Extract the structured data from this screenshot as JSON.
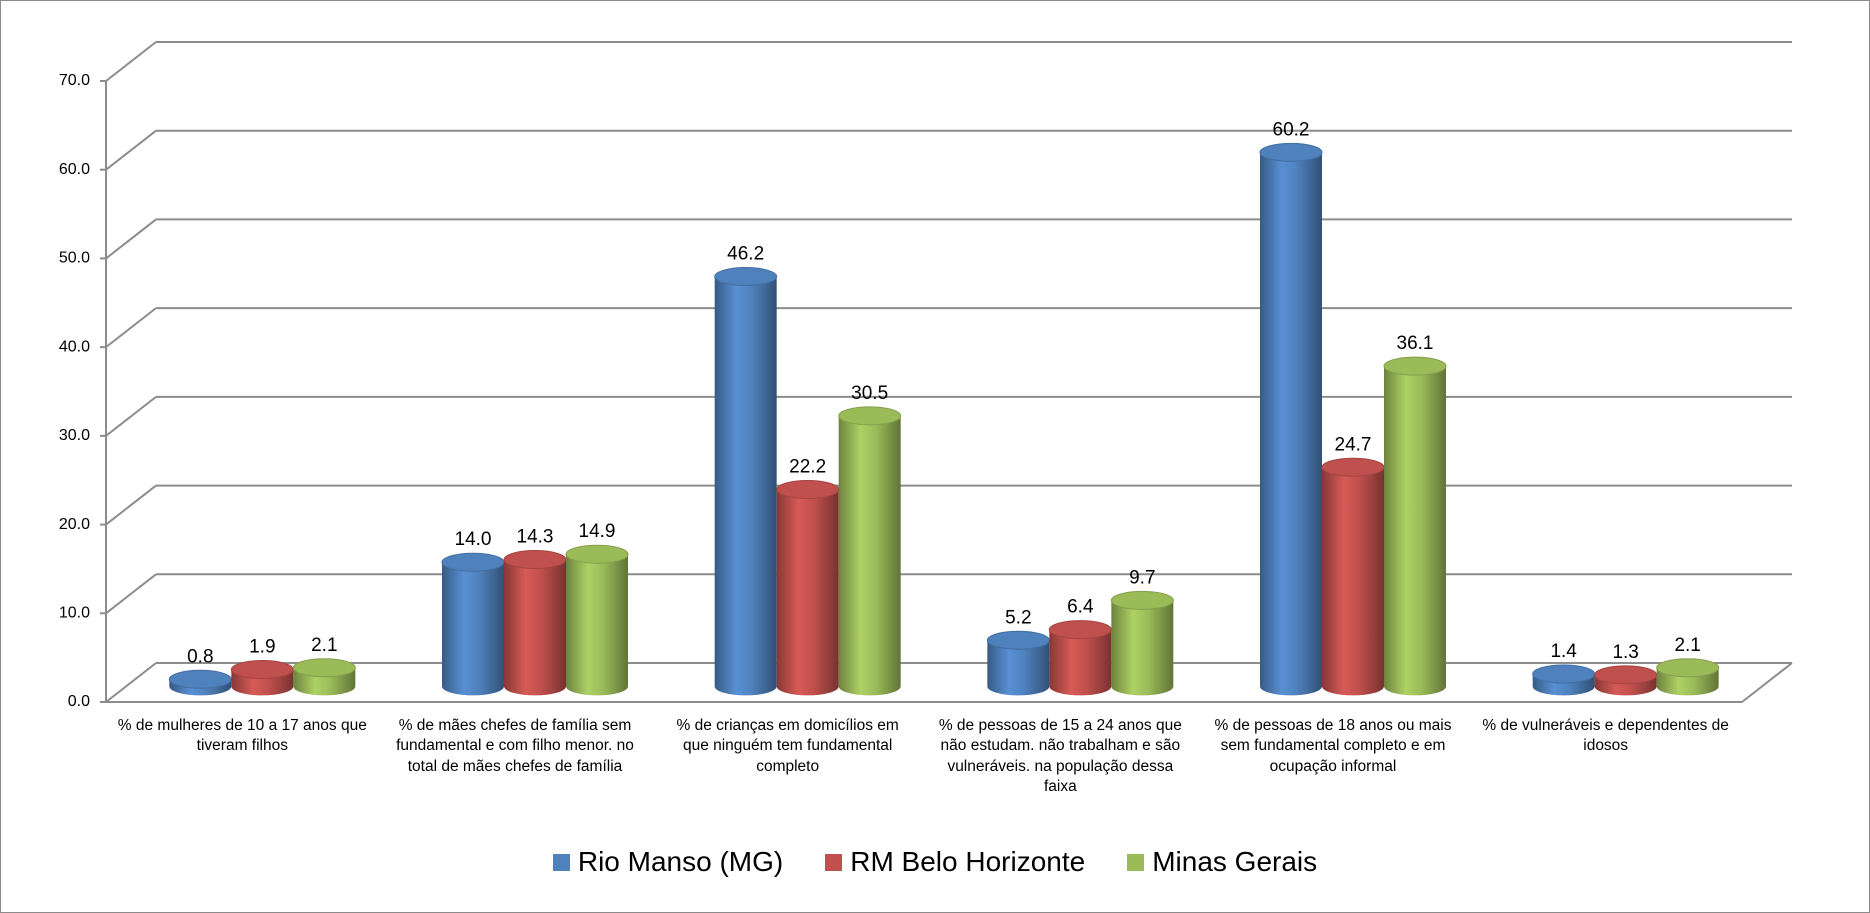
{
  "chart_data": {
    "type": "bar3d",
    "categories": [
      "% de mulheres de 10 a 17 anos que tiveram filhos",
      "% de mães chefes de família sem fundamental e com filho menor. no total de mães chefes de família",
      "% de crianças em domicílios em que ninguém tem fundamental completo",
      "% de pessoas de 15 a 24 anos que não estudam. não trabalham e são vulneráveis. na população dessa faixa",
      "% de pessoas de 18 anos ou mais sem fundamental completo e em ocupação informal",
      "% de vulneráveis e dependentes de idosos"
    ],
    "series": [
      {
        "name": "Rio Manso (MG)",
        "color": "#4f81bd",
        "values": [
          0.8,
          14.0,
          46.2,
          5.2,
          60.2,
          1.4
        ],
        "value_labels": [
          "0.8",
          "14.0",
          "46.2",
          "5.2",
          "60.2",
          "1.4"
        ]
      },
      {
        "name": "RM Belo Horizonte",
        "color": "#c0504d",
        "values": [
          1.9,
          14.3,
          22.2,
          6.4,
          24.7,
          1.3
        ],
        "value_labels": [
          "1.9",
          "14.3",
          "22.2",
          "6.4",
          "24.7",
          "1.3"
        ]
      },
      {
        "name": "Minas Gerais",
        "color": "#9bbb59",
        "values": [
          2.1,
          14.9,
          30.5,
          9.7,
          36.1,
          2.1
        ],
        "value_labels": [
          "2.1",
          "14.9",
          "30.5",
          "9.7",
          "36.1",
          "2.1"
        ]
      }
    ],
    "ylim": [
      0,
      70
    ],
    "yticks": [
      {
        "value": 0,
        "label": "0.0"
      },
      {
        "value": 10,
        "label": "10.0"
      },
      {
        "value": 20,
        "label": "20.0"
      },
      {
        "value": 30,
        "label": "30.0"
      },
      {
        "value": 40,
        "label": "40.0"
      },
      {
        "value": 50,
        "label": "50.0"
      },
      {
        "value": 60,
        "label": "60.0"
      },
      {
        "value": 70,
        "label": "70.0"
      }
    ],
    "grid": true,
    "legend": "bottom"
  }
}
